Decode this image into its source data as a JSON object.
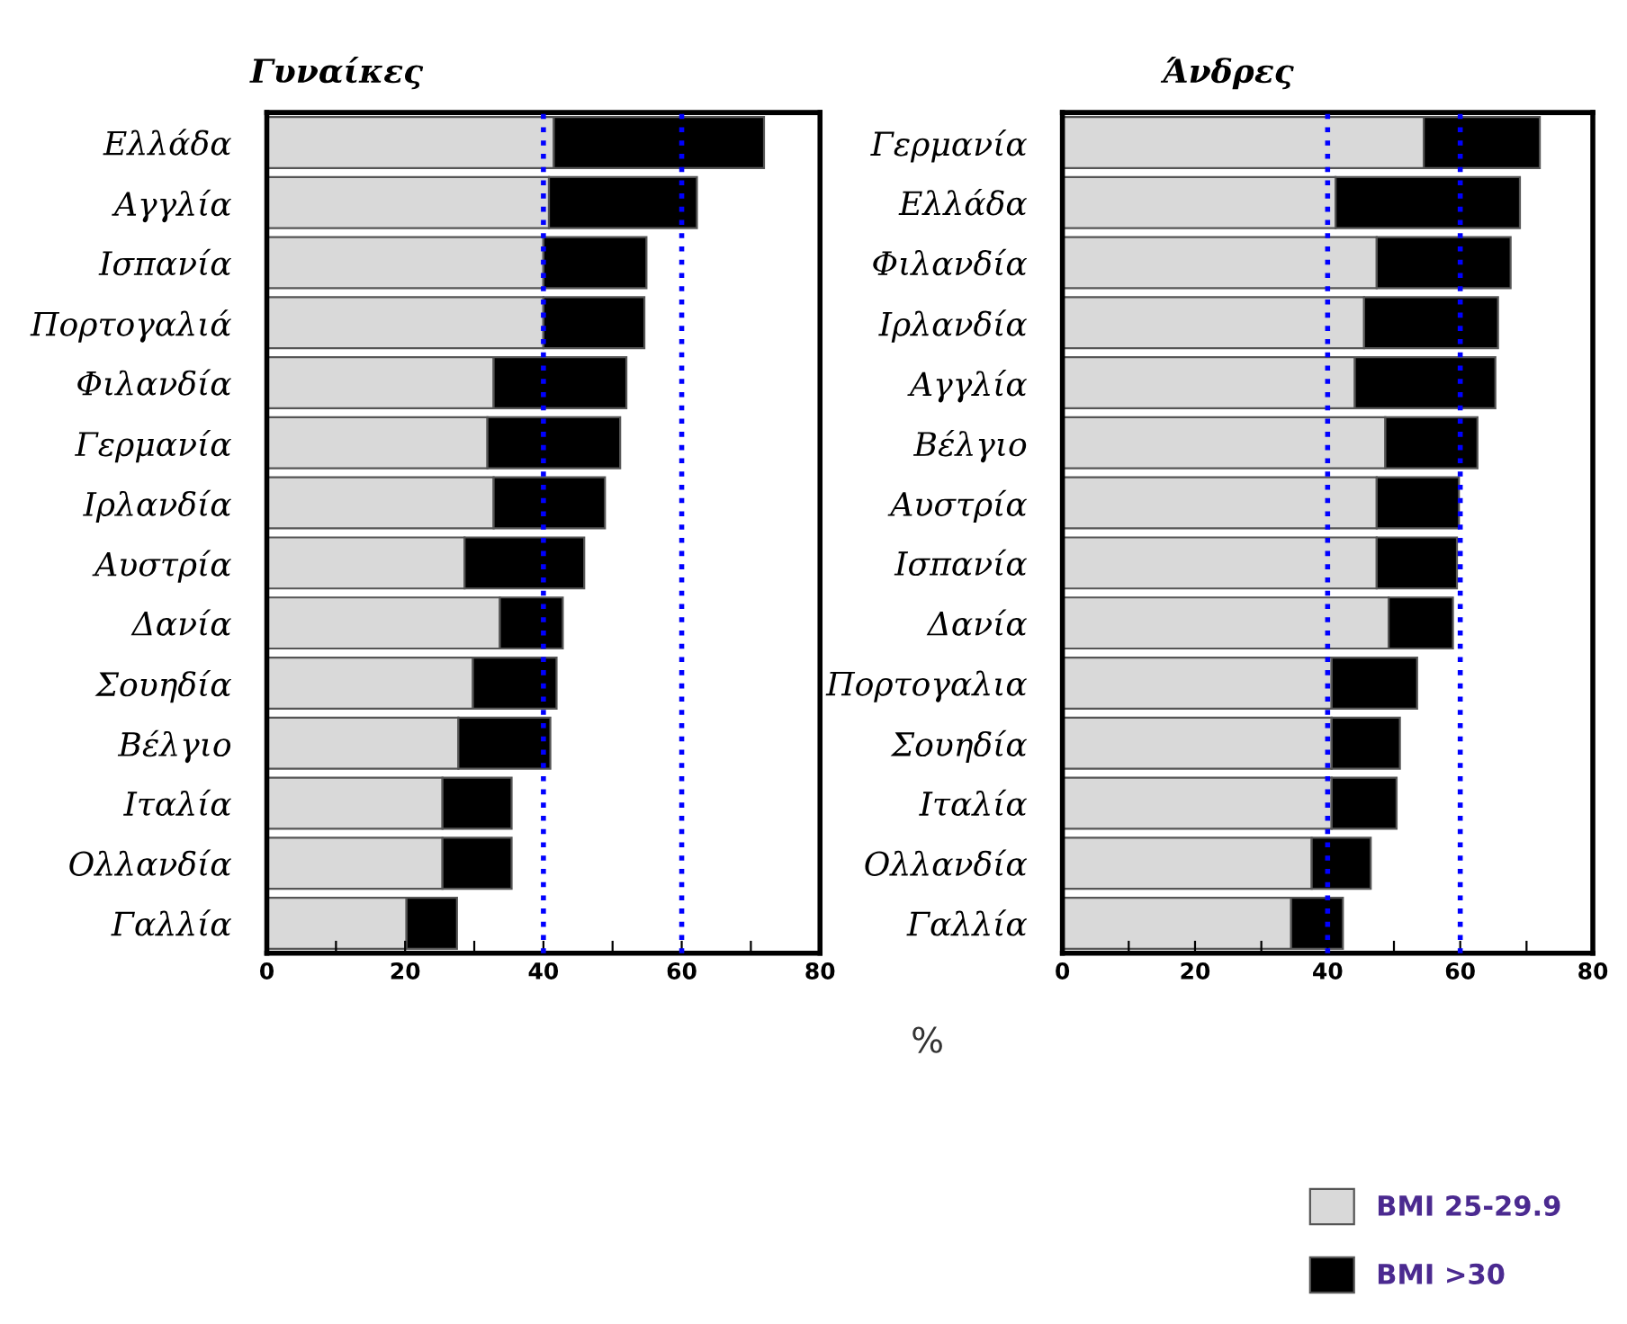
{
  "chart_data": [
    {
      "type": "bar",
      "orientation": "horizontal",
      "stacked": true,
      "title": "Γυναίκες",
      "xlabel": "%",
      "categories": [
        "Ελλάδα",
        "Αγγλία",
        "Ισπανία",
        "Πορτογαλιά",
        "Φιλανδία",
        "Γερμανία",
        "Ιρλανδία",
        "Αυστρία",
        "Δανία",
        "Σουηδία",
        "Βέλγιο",
        "Ιταλία",
        "Ολλανδία",
        "Γαλλία"
      ],
      "series": [
        {
          "color": "#d9d9d9",
          "values": [
            41.5,
            40.8,
            40.0,
            40.0,
            32.8,
            31.9,
            32.8,
            28.6,
            33.7,
            29.8,
            27.7,
            25.4,
            25.4,
            20.2
          ]
        },
        {
          "color": "#000000",
          "values": [
            30.4,
            21.4,
            14.9,
            14.6,
            19.2,
            19.2,
            16.1,
            17.3,
            9.1,
            12.1,
            13.3,
            10.0,
            10.0,
            7.3
          ]
        }
      ],
      "xlim": [
        0,
        80
      ],
      "xticks": [
        0,
        {
          "value": 10,
          "label": null
        },
        20,
        {
          "value": 30,
          "label": null
        },
        40,
        {
          "value": 50,
          "label": null
        },
        60,
        {
          "value": 70,
          "label": null
        },
        80
      ],
      "ref_lines": [
        {
          "axis": "x",
          "value": 40,
          "color": "#0000ff",
          "line_style": "dotted"
        },
        {
          "axis": "x",
          "value": 60,
          "color": "#0000ff",
          "line_style": "dotted"
        }
      ],
      "grid": false,
      "legend": false
    },
    {
      "type": "bar",
      "orientation": "horizontal",
      "stacked": true,
      "title": "Άνδρες",
      "categories": [
        "Γερμανία",
        "Ελλάδα",
        "Φιλανδία",
        "Ιρλανδία",
        "Αγγλία",
        "Βέλγιο",
        "Αυστρία",
        "Ισπανία",
        "Δανία",
        "Πορτογαλια",
        "Σουηδία",
        "Ιταλία",
        "Ολλανδία",
        "Γαλλία"
      ],
      "series": [
        {
          "name": "BMI 25-29.9",
          "color": "#d9d9d9",
          "values": [
            54.5,
            41.2,
            47.4,
            45.5,
            44.1,
            48.7,
            47.4,
            47.4,
            49.2,
            40.6,
            40.6,
            40.6,
            37.6,
            34.5
          ]
        },
        {
          "name": "BMI >30",
          "color": "#000000",
          "values": [
            17.5,
            27.8,
            20.2,
            20.2,
            21.2,
            13.9,
            12.4,
            12.1,
            9.7,
            12.9,
            10.3,
            9.8,
            8.9,
            7.8
          ]
        }
      ],
      "xlim": [
        0,
        80
      ],
      "xticks": [
        0,
        {
          "value": 10,
          "label": null
        },
        20,
        {
          "value": 30,
          "label": null
        },
        40,
        {
          "value": 50,
          "label": null
        },
        60,
        {
          "value": 70,
          "label": null
        },
        80
      ],
      "ref_lines": [
        {
          "axis": "x",
          "value": 40,
          "color": "#0000ff",
          "line_style": "dotted"
        },
        {
          "axis": "x",
          "value": 60,
          "color": "#0000ff",
          "line_style": "dotted"
        }
      ],
      "grid": false,
      "legend": "bottom right"
    }
  ]
}
